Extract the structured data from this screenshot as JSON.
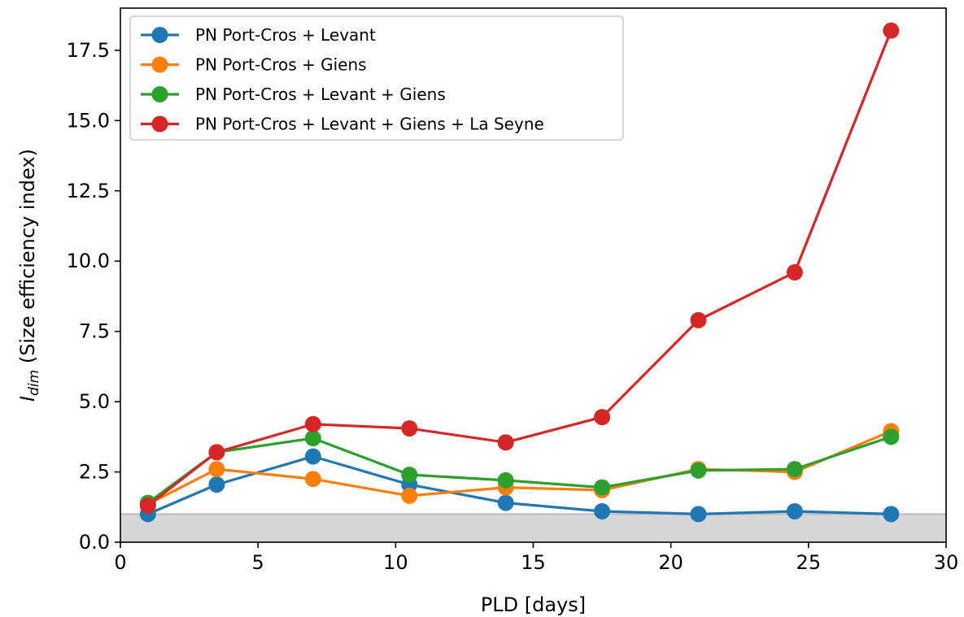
{
  "chart_data": {
    "type": "line",
    "title": "",
    "xlabel": "PLD [days]",
    "ylabel": {
      "main": "I",
      "subscript": "dim",
      "rest": " (Size efficiency index)"
    },
    "xlim": [
      0,
      30
    ],
    "ylim": [
      0,
      19
    ],
    "xticks": [
      0,
      5,
      10,
      15,
      20,
      25,
      30
    ],
    "xtick_labels": [
      "0",
      "5",
      "10",
      "15",
      "20",
      "25",
      "30"
    ],
    "yticks": [
      0,
      2.5,
      5,
      7.5,
      10,
      12.5,
      15,
      17.5
    ],
    "ytick_labels": [
      "0.0",
      "2.5",
      "5.0",
      "7.5",
      "10.0",
      "12.5",
      "15.0",
      "17.5"
    ],
    "grid": false,
    "legend_position": "top-left",
    "shaded_band": {
      "y_from": 0,
      "y_to": 1,
      "color": "#d6d6d6",
      "edge_color": "#bdbdbd"
    },
    "x": [
      1,
      3.5,
      7,
      10.5,
      14,
      17.5,
      21,
      24.5,
      28
    ],
    "series": [
      {
        "name": "PN Port-Cros + Levant",
        "color": "#1f77b4",
        "values": [
          1.0,
          2.05,
          3.05,
          2.05,
          1.4,
          1.1,
          1.0,
          1.1,
          1.0
        ]
      },
      {
        "name": "PN Port-Cros + Giens",
        "color": "#ff7f0e",
        "values": [
          1.35,
          2.6,
          2.25,
          1.65,
          1.95,
          1.85,
          2.6,
          2.5,
          3.95
        ]
      },
      {
        "name": "PN Port-Cros + Levant + Giens",
        "color": "#2ca02c",
        "values": [
          1.4,
          3.2,
          3.7,
          2.4,
          2.2,
          1.95,
          2.55,
          2.6,
          3.75
        ]
      },
      {
        "name": "PN Port-Cros + Levant + Giens + La Seyne",
        "color": "#d62728",
        "values": [
          1.3,
          3.2,
          4.2,
          4.05,
          3.55,
          4.45,
          7.9,
          9.6,
          18.2
        ]
      }
    ]
  }
}
